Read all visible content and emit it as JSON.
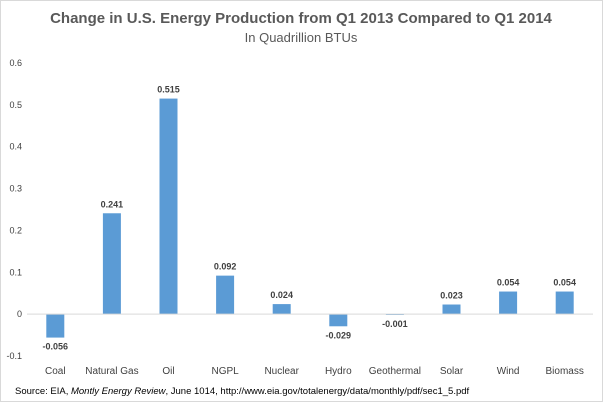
{
  "chart_data": {
    "type": "bar",
    "title": "Change in U.S. Energy Production from Q1 2013 Compared to Q1 2014",
    "subtitle": "In Quadrillion BTUs",
    "xlabel": "",
    "ylabel": "",
    "categories": [
      "Coal",
      "Natural Gas",
      "Oil",
      "NGPL",
      "Nuclear",
      "Hydro",
      "Geothermal",
      "Solar",
      "Wind",
      "Biomass"
    ],
    "values": [
      -0.056,
      0.241,
      0.515,
      0.092,
      0.024,
      -0.029,
      -0.001,
      0.023,
      0.054,
      0.054
    ],
    "value_labels": [
      "-0.056",
      "0.241",
      "0.515",
      "0.092",
      "0.024",
      "-0.029",
      "-0.001",
      "0.023",
      "0.054",
      "0.054"
    ],
    "ylim": [
      -0.1,
      0.6
    ],
    "yticks": [
      "-0.1",
      "0",
      "0.1",
      "0.2",
      "0.3",
      "0.4",
      "0.5",
      "0.6"
    ],
    "ytick_values": [
      -0.1,
      0,
      0.1,
      0.2,
      0.3,
      0.4,
      0.5,
      0.6
    ],
    "grid": false,
    "legend": "none",
    "bar_color": "#5b9bd5",
    "source": {
      "prefix": "Source: EIA, ",
      "italic": "Montly Energy Review",
      "suffix": ",  June 1014, http://www.eia.gov/totalenergy/data/monthly/pdf/sec1_5.pdf"
    }
  }
}
